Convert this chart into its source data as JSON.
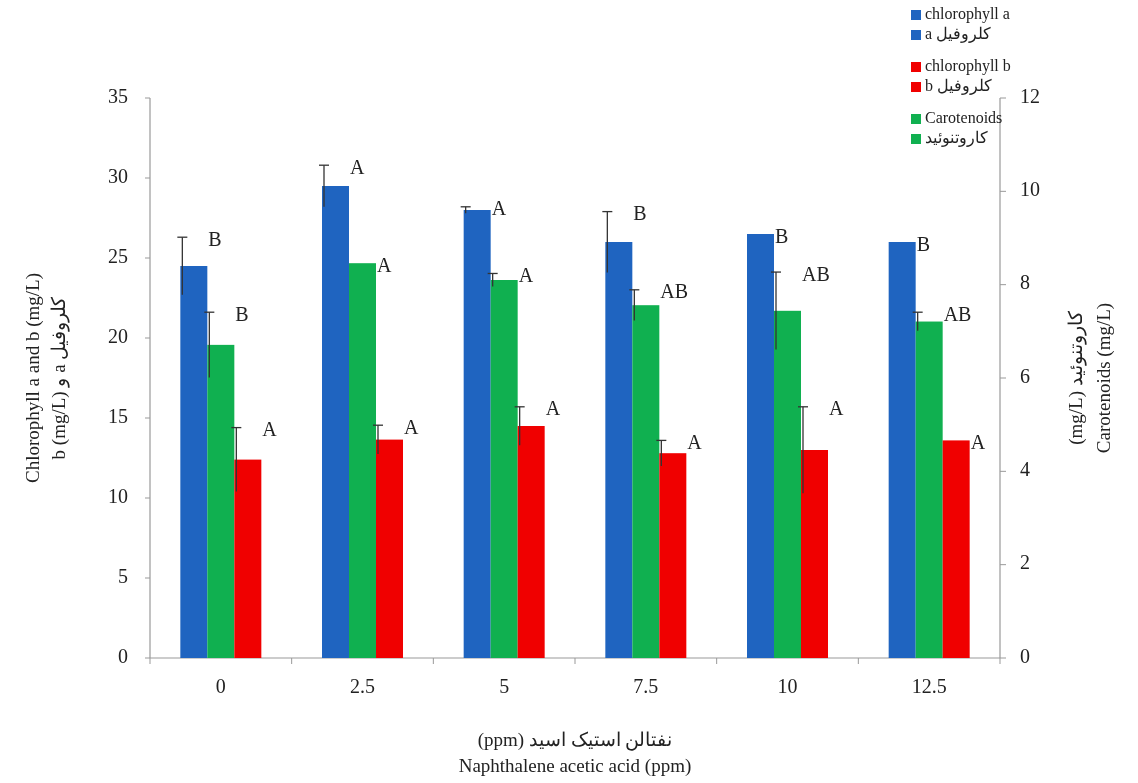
{
  "chart_data": {
    "type": "bar",
    "categories": [
      "0",
      "2.5",
      "5",
      "7.5",
      "10",
      "12.5"
    ],
    "xlabel": "نفتالن استیک اسید (ppm)\nNaphthalene acetic acid (ppm)",
    "ylabel": "Chlorophyll a and b (mg/L)\nکلروفیل a و b (mg/L)",
    "y2label": "کاروتنوئید (mg/L)\nCarotenoids  (mg/L)",
    "ylim": [
      0,
      35
    ],
    "yticks": [
      0,
      5,
      10,
      15,
      20,
      25,
      30,
      35
    ],
    "y2lim": [
      0,
      12
    ],
    "y2ticks": [
      0,
      2,
      4,
      6,
      8,
      10,
      12
    ],
    "legend": "top right",
    "grid": false,
    "series": [
      {
        "name": "chlorophyll a\nکلروفیل a",
        "color": "#1f64c0",
        "values": [
          24.5,
          29.5,
          28.0,
          26.0,
          26.5,
          26.0
        ],
        "errors": [
          1.8,
          1.3,
          0.2,
          1.9,
          null,
          null
        ],
        "value_labels": [
          "B",
          "A",
          "A",
          "B",
          "B",
          "B"
        ]
      },
      {
        "name": "chlorophyll b\nکلروفیل b",
        "color": "#f00000",
        "values": [
          12.4,
          13.65,
          14.5,
          12.8,
          13.0,
          13.6
        ],
        "errors": [
          2.0,
          0.9,
          1.2,
          0.8,
          2.7,
          null
        ],
        "value_labels": [
          "A",
          "A",
          "A",
          "A",
          "A",
          "A"
        ]
      },
      {
        "name": "Carotenoids\nکاروتنوئید",
        "color": "#10b050",
        "axis": "y2",
        "values": [
          6.71,
          8.46,
          8.1,
          7.56,
          7.44,
          7.21
        ],
        "errors": [
          0.7,
          null,
          0.14,
          0.33,
          0.83,
          0.2
        ],
        "value_labels": [
          "B",
          "A",
          "A",
          "AB",
          "AB",
          "AB"
        ]
      }
    ]
  }
}
